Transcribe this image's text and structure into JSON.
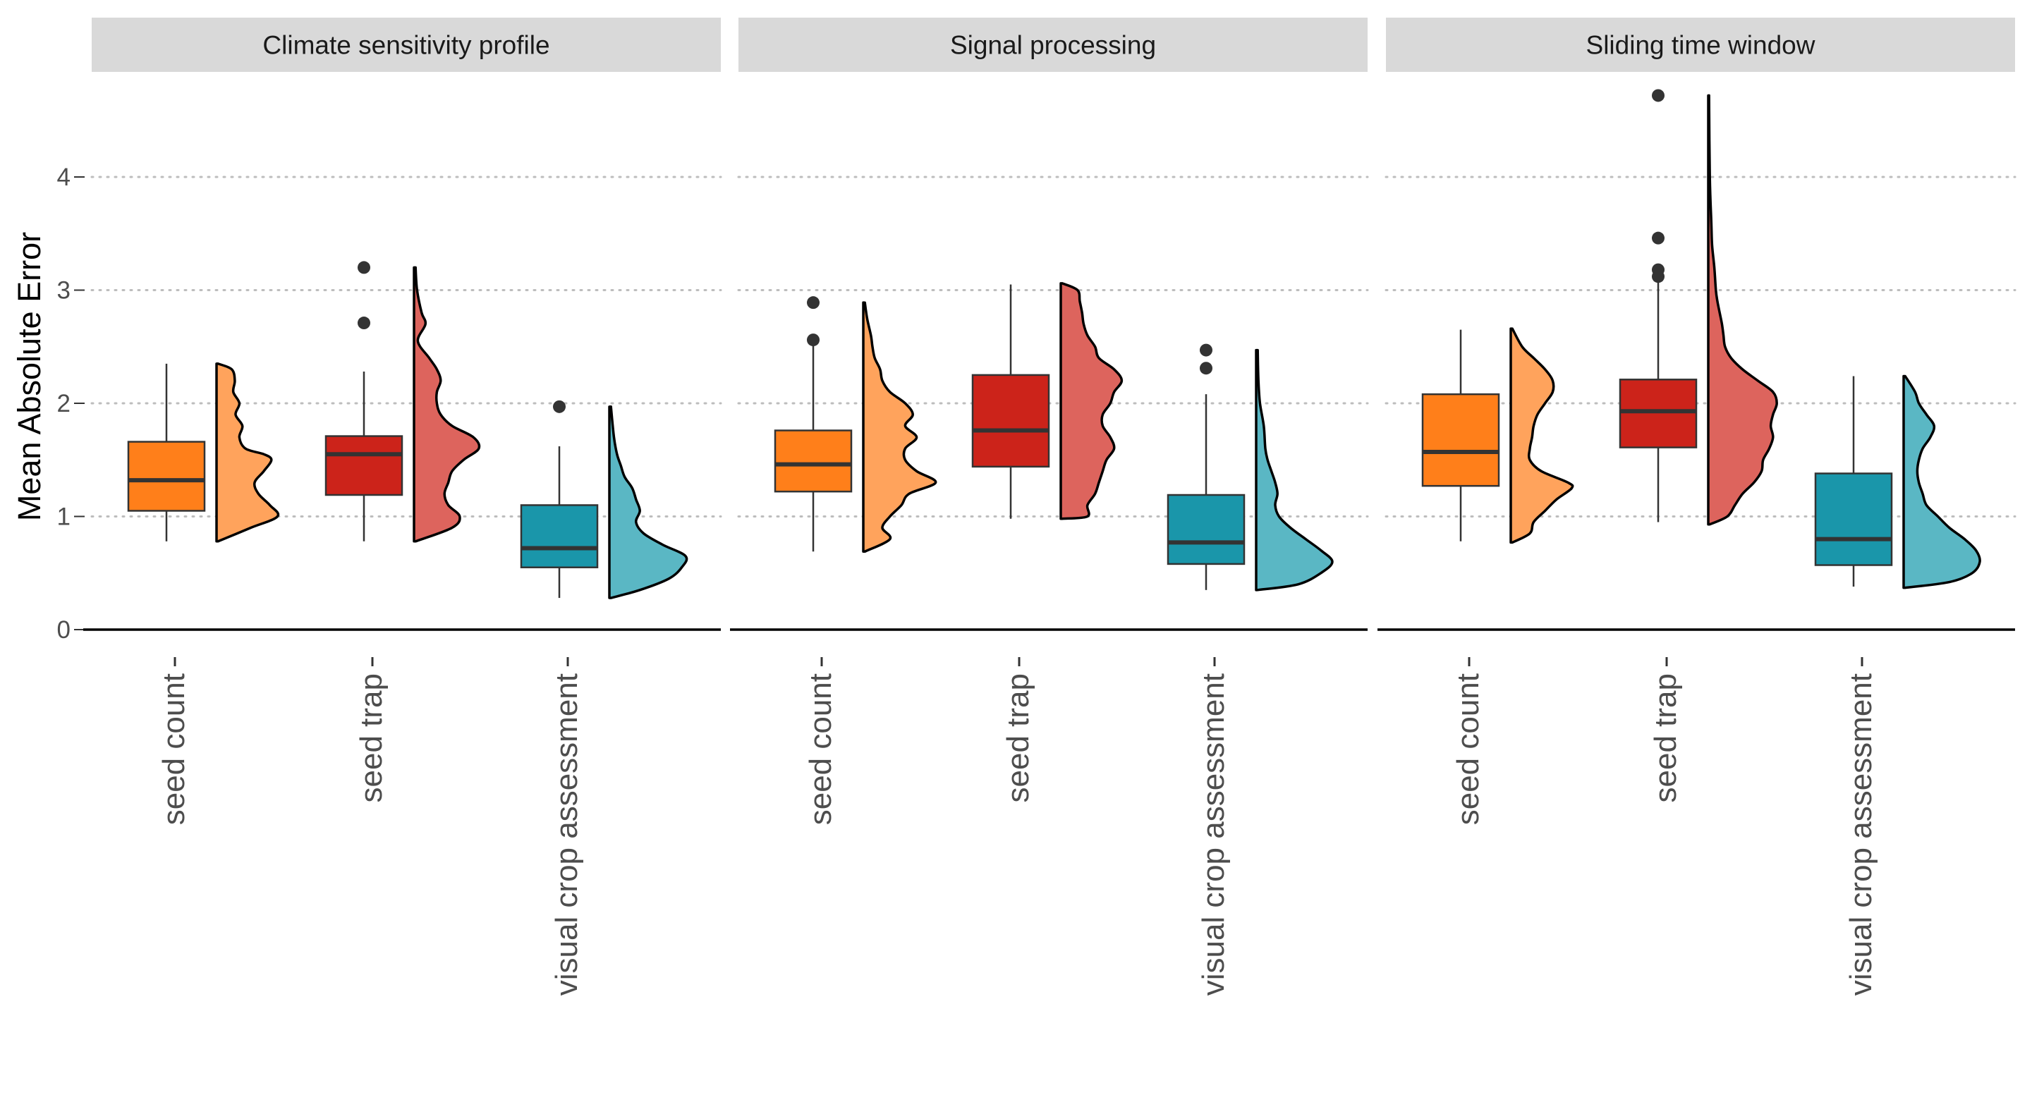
{
  "chart_data": {
    "type": "boxplot-raincloud",
    "ylabel": "Mean Absolute Error",
    "ylim": [
      0,
      4.75
    ],
    "yticks": [
      0,
      1,
      2,
      3,
      4
    ],
    "grid": "horizontal dotted",
    "categories": [
      "seed count",
      "seed trap",
      "visual crop assessment"
    ],
    "colors": {
      "seed count": {
        "box": "#FF7F1A",
        "density": "#FFA35C"
      },
      "seed trap": {
        "box": "#CC231A",
        "density": "#DD645D"
      },
      "visual crop assessment": {
        "box": "#1A96AA",
        "density": "#5AB7C4"
      }
    },
    "panels": [
      {
        "title": "Climate sensitivity profile",
        "groups": [
          {
            "category": "seed count",
            "min": 0.78,
            "q1": 1.05,
            "median": 1.32,
            "q3": 1.66,
            "max": 2.35,
            "outliers": [],
            "density": [
              [
                0.78,
                0.02
              ],
              [
                0.9,
                0.45
              ],
              [
                1.0,
                0.8
              ],
              [
                1.1,
                0.7
              ],
              [
                1.2,
                0.55
              ],
              [
                1.3,
                0.5
              ],
              [
                1.4,
                0.62
              ],
              [
                1.5,
                0.72
              ],
              [
                1.55,
                0.62
              ],
              [
                1.6,
                0.38
              ],
              [
                1.7,
                0.3
              ],
              [
                1.8,
                0.34
              ],
              [
                1.9,
                0.25
              ],
              [
                2.0,
                0.3
              ],
              [
                2.1,
                0.22
              ],
              [
                2.2,
                0.24
              ],
              [
                2.3,
                0.2
              ],
              [
                2.35,
                0.02
              ]
            ]
          },
          {
            "category": "seed trap",
            "min": 0.78,
            "q1": 1.19,
            "median": 1.55,
            "q3": 1.71,
            "max": 2.28,
            "outliers": [
              2.71,
              3.2
            ],
            "density": [
              [
                0.78,
                0.02
              ],
              [
                0.9,
                0.5
              ],
              [
                1.0,
                0.6
              ],
              [
                1.1,
                0.45
              ],
              [
                1.2,
                0.4
              ],
              [
                1.3,
                0.45
              ],
              [
                1.4,
                0.5
              ],
              [
                1.5,
                0.65
              ],
              [
                1.6,
                0.85
              ],
              [
                1.7,
                0.78
              ],
              [
                1.8,
                0.5
              ],
              [
                1.9,
                0.35
              ],
              [
                2.0,
                0.3
              ],
              [
                2.1,
                0.3
              ],
              [
                2.2,
                0.35
              ],
              [
                2.3,
                0.3
              ],
              [
                2.4,
                0.2
              ],
              [
                2.55,
                0.05
              ],
              [
                2.7,
                0.15
              ],
              [
                2.8,
                0.1
              ],
              [
                3.0,
                0.04
              ],
              [
                3.2,
                0.02
              ]
            ]
          },
          {
            "category": "visual crop assessment",
            "min": 0.28,
            "q1": 0.55,
            "median": 0.72,
            "q3": 1.1,
            "max": 1.62,
            "outliers": [
              1.97
            ],
            "density": [
              [
                0.28,
                0.02
              ],
              [
                0.35,
                0.4
              ],
              [
                0.45,
                0.78
              ],
              [
                0.55,
                0.95
              ],
              [
                0.65,
                1.0
              ],
              [
                0.75,
                0.7
              ],
              [
                0.85,
                0.45
              ],
              [
                0.95,
                0.35
              ],
              [
                1.05,
                0.4
              ],
              [
                1.15,
                0.35
              ],
              [
                1.25,
                0.3
              ],
              [
                1.35,
                0.2
              ],
              [
                1.45,
                0.15
              ],
              [
                1.55,
                0.1
              ],
              [
                1.7,
                0.06
              ],
              [
                1.97,
                0.02
              ]
            ]
          }
        ]
      },
      {
        "title": "Signal processing",
        "groups": [
          {
            "category": "seed count",
            "min": 0.69,
            "q1": 1.22,
            "median": 1.46,
            "q3": 1.76,
            "max": 2.58,
            "outliers": [
              2.56,
              2.89
            ],
            "density": [
              [
                0.69,
                0.02
              ],
              [
                0.8,
                0.35
              ],
              [
                0.9,
                0.25
              ],
              [
                1.0,
                0.35
              ],
              [
                1.1,
                0.5
              ],
              [
                1.2,
                0.6
              ],
              [
                1.3,
                0.95
              ],
              [
                1.4,
                0.7
              ],
              [
                1.5,
                0.55
              ],
              [
                1.6,
                0.55
              ],
              [
                1.7,
                0.7
              ],
              [
                1.8,
                0.55
              ],
              [
                1.9,
                0.65
              ],
              [
                2.0,
                0.55
              ],
              [
                2.1,
                0.35
              ],
              [
                2.2,
                0.25
              ],
              [
                2.3,
                0.22
              ],
              [
                2.4,
                0.15
              ],
              [
                2.5,
                0.12
              ],
              [
                2.6,
                0.1
              ],
              [
                2.75,
                0.05
              ],
              [
                2.89,
                0.02
              ]
            ]
          },
          {
            "category": "seed trap",
            "min": 0.98,
            "q1": 1.44,
            "median": 1.76,
            "q3": 2.25,
            "max": 3.05,
            "outliers": [],
            "density": [
              [
                0.98,
                0.02
              ],
              [
                1.0,
                0.35
              ],
              [
                1.1,
                0.35
              ],
              [
                1.2,
                0.45
              ],
              [
                1.3,
                0.5
              ],
              [
                1.4,
                0.55
              ],
              [
                1.5,
                0.6
              ],
              [
                1.6,
                0.7
              ],
              [
                1.7,
                0.65
              ],
              [
                1.8,
                0.55
              ],
              [
                1.9,
                0.55
              ],
              [
                2.0,
                0.65
              ],
              [
                2.1,
                0.7
              ],
              [
                2.2,
                0.8
              ],
              [
                2.3,
                0.7
              ],
              [
                2.4,
                0.5
              ],
              [
                2.5,
                0.45
              ],
              [
                2.6,
                0.35
              ],
              [
                2.7,
                0.3
              ],
              [
                2.8,
                0.28
              ],
              [
                2.9,
                0.25
              ],
              [
                3.0,
                0.22
              ],
              [
                3.06,
                0.02
              ]
            ]
          },
          {
            "category": "visual crop assessment",
            "min": 0.35,
            "q1": 0.58,
            "median": 0.77,
            "q3": 1.19,
            "max": 2.08,
            "outliers": [
              2.31,
              2.47
            ],
            "density": [
              [
                0.35,
                0.02
              ],
              [
                0.4,
                0.55
              ],
              [
                0.5,
                0.85
              ],
              [
                0.6,
                1.0
              ],
              [
                0.7,
                0.85
              ],
              [
                0.8,
                0.65
              ],
              [
                0.9,
                0.45
              ],
              [
                1.0,
                0.3
              ],
              [
                1.1,
                0.25
              ],
              [
                1.2,
                0.28
              ],
              [
                1.3,
                0.25
              ],
              [
                1.4,
                0.2
              ],
              [
                1.5,
                0.15
              ],
              [
                1.6,
                0.12
              ],
              [
                1.8,
                0.1
              ],
              [
                2.0,
                0.05
              ],
              [
                2.2,
                0.03
              ],
              [
                2.47,
                0.02
              ]
            ]
          }
        ]
      },
      {
        "title": "Sliding time window",
        "groups": [
          {
            "category": "seed count",
            "min": 0.78,
            "q1": 1.27,
            "median": 1.57,
            "q3": 2.08,
            "max": 2.65,
            "outliers": [],
            "density": [
              [
                0.77,
                0.02
              ],
              [
                0.85,
                0.25
              ],
              [
                0.95,
                0.3
              ],
              [
                1.05,
                0.45
              ],
              [
                1.15,
                0.6
              ],
              [
                1.25,
                0.8
              ],
              [
                1.3,
                0.75
              ],
              [
                1.4,
                0.4
              ],
              [
                1.5,
                0.25
              ],
              [
                1.6,
                0.25
              ],
              [
                1.7,
                0.28
              ],
              [
                1.8,
                0.3
              ],
              [
                1.9,
                0.35
              ],
              [
                2.0,
                0.45
              ],
              [
                2.1,
                0.55
              ],
              [
                2.2,
                0.55
              ],
              [
                2.3,
                0.45
              ],
              [
                2.4,
                0.3
              ],
              [
                2.5,
                0.15
              ],
              [
                2.66,
                0.02
              ]
            ]
          },
          {
            "category": "seed trap",
            "min": 0.95,
            "q1": 1.61,
            "median": 1.93,
            "q3": 2.21,
            "max": 3.07,
            "outliers": [
              3.12,
              3.18,
              3.46,
              4.72
            ],
            "density": [
              [
                0.93,
                0.02
              ],
              [
                1.0,
                0.25
              ],
              [
                1.1,
                0.35
              ],
              [
                1.2,
                0.45
              ],
              [
                1.3,
                0.6
              ],
              [
                1.4,
                0.7
              ],
              [
                1.5,
                0.72
              ],
              [
                1.6,
                0.8
              ],
              [
                1.7,
                0.85
              ],
              [
                1.8,
                0.82
              ],
              [
                1.9,
                0.85
              ],
              [
                2.0,
                0.9
              ],
              [
                2.1,
                0.85
              ],
              [
                2.2,
                0.65
              ],
              [
                2.3,
                0.45
              ],
              [
                2.4,
                0.3
              ],
              [
                2.5,
                0.22
              ],
              [
                2.6,
                0.2
              ],
              [
                2.7,
                0.18
              ],
              [
                2.8,
                0.15
              ],
              [
                2.9,
                0.12
              ],
              [
                3.0,
                0.1
              ],
              [
                3.2,
                0.08
              ],
              [
                3.4,
                0.05
              ],
              [
                3.6,
                0.04
              ],
              [
                4.0,
                0.02
              ],
              [
                4.72,
                0.01
              ]
            ]
          },
          {
            "category": "visual crop assessment",
            "min": 0.38,
            "q1": 0.57,
            "median": 0.8,
            "q3": 1.38,
            "max": 2.24,
            "outliers": [],
            "density": [
              [
                0.37,
                0.02
              ],
              [
                0.42,
                0.6
              ],
              [
                0.5,
                0.9
              ],
              [
                0.6,
                1.0
              ],
              [
                0.7,
                0.95
              ],
              [
                0.8,
                0.8
              ],
              [
                0.9,
                0.6
              ],
              [
                1.0,
                0.45
              ],
              [
                1.1,
                0.3
              ],
              [
                1.2,
                0.25
              ],
              [
                1.3,
                0.2
              ],
              [
                1.4,
                0.18
              ],
              [
                1.5,
                0.2
              ],
              [
                1.6,
                0.25
              ],
              [
                1.7,
                0.35
              ],
              [
                1.8,
                0.4
              ],
              [
                1.9,
                0.3
              ],
              [
                2.0,
                0.2
              ],
              [
                2.1,
                0.15
              ],
              [
                2.24,
                0.02
              ]
            ]
          }
        ]
      }
    ]
  }
}
